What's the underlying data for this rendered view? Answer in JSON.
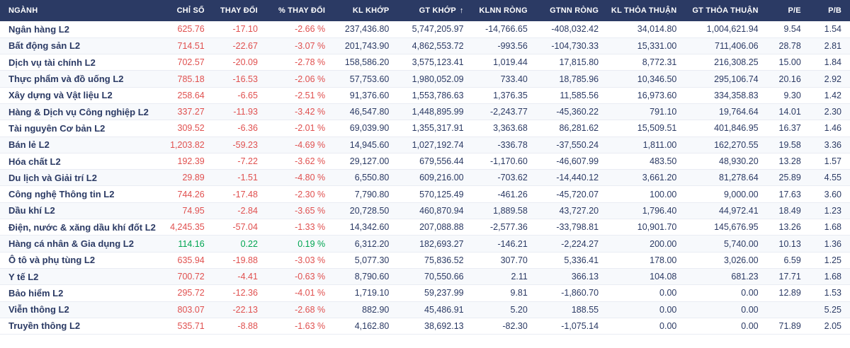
{
  "colors": {
    "header_bg": "#2b3a64",
    "text_navy": "#2b3a64",
    "negative": "#e0504f",
    "positive": "#00a551",
    "row_alt_bg": "#f7f9fc",
    "row_border": "#e9ecf3"
  },
  "icons": {
    "sort": "↑"
  },
  "table": {
    "sorted_by": "GT KHỚP",
    "columns": [
      {
        "key": "sector",
        "label": "NGÀNH"
      },
      {
        "key": "index",
        "label": "CHỈ SỐ"
      },
      {
        "key": "change",
        "label": "THAY ĐỔI"
      },
      {
        "key": "pct_change",
        "label": "% THAY ĐỔI"
      },
      {
        "key": "matched_volume",
        "label": "KL KHỚP"
      },
      {
        "key": "matched_value",
        "label": "GT KHỚP",
        "sort": true
      },
      {
        "key": "foreign_net_volume",
        "label": "KLNN RÒNG"
      },
      {
        "key": "foreign_net_value",
        "label": "GTNN RÒNG"
      },
      {
        "key": "deal_volume",
        "label": "KL THỎA THUẬN"
      },
      {
        "key": "deal_value",
        "label": "GT THỎA THUẬN"
      },
      {
        "key": "pe",
        "label": "P/E"
      },
      {
        "key": "pb",
        "label": "P/B"
      }
    ],
    "rows": [
      {
        "sector": "Ngân hàng L2",
        "index": "625.76",
        "change": "-17.10",
        "pct_change": "-2.66 %",
        "matched_volume": "237,436.80",
        "matched_value": "5,747,205.97",
        "foreign_net_volume": "-14,766.65",
        "foreign_net_value": "-408,032.42",
        "deal_volume": "34,014.80",
        "deal_value": "1,004,621.94",
        "pe": "9.54",
        "pb": "1.54",
        "trend": "down"
      },
      {
        "sector": "Bất động sản L2",
        "index": "714.51",
        "change": "-22.67",
        "pct_change": "-3.07 %",
        "matched_volume": "201,743.90",
        "matched_value": "4,862,553.72",
        "foreign_net_volume": "-993.56",
        "foreign_net_value": "-104,730.33",
        "deal_volume": "15,331.00",
        "deal_value": "711,406.06",
        "pe": "28.78",
        "pb": "2.81",
        "trend": "down"
      },
      {
        "sector": "Dịch vụ tài chính L2",
        "index": "702.57",
        "change": "-20.09",
        "pct_change": "-2.78 %",
        "matched_volume": "158,586.20",
        "matched_value": "3,575,123.41",
        "foreign_net_volume": "1,019.44",
        "foreign_net_value": "17,815.80",
        "deal_volume": "8,772.31",
        "deal_value": "216,308.25",
        "pe": "15.00",
        "pb": "1.84",
        "trend": "down"
      },
      {
        "sector": "Thực phẩm và đồ uống L2",
        "index": "785.18",
        "change": "-16.53",
        "pct_change": "-2.06 %",
        "matched_volume": "57,753.60",
        "matched_value": "1,980,052.09",
        "foreign_net_volume": "733.40",
        "foreign_net_value": "18,785.96",
        "deal_volume": "10,346.50",
        "deal_value": "295,106.74",
        "pe": "20.16",
        "pb": "2.92",
        "trend": "down"
      },
      {
        "sector": "Xây dựng và Vật liệu L2",
        "index": "258.64",
        "change": "-6.65",
        "pct_change": "-2.51 %",
        "matched_volume": "91,376.60",
        "matched_value": "1,553,786.63",
        "foreign_net_volume": "1,376.35",
        "foreign_net_value": "11,585.56",
        "deal_volume": "16,973.60",
        "deal_value": "334,358.83",
        "pe": "9.30",
        "pb": "1.42",
        "trend": "down"
      },
      {
        "sector": "Hàng & Dịch vụ Công nghiệp L2",
        "index": "337.27",
        "change": "-11.93",
        "pct_change": "-3.42 %",
        "matched_volume": "46,547.80",
        "matched_value": "1,448,895.99",
        "foreign_net_volume": "-2,243.77",
        "foreign_net_value": "-45,360.22",
        "deal_volume": "791.10",
        "deal_value": "19,764.64",
        "pe": "14.01",
        "pb": "2.30",
        "trend": "down"
      },
      {
        "sector": "Tài nguyên Cơ bản L2",
        "index": "309.52",
        "change": "-6.36",
        "pct_change": "-2.01 %",
        "matched_volume": "69,039.90",
        "matched_value": "1,355,317.91",
        "foreign_net_volume": "3,363.68",
        "foreign_net_value": "86,281.62",
        "deal_volume": "15,509.51",
        "deal_value": "401,846.95",
        "pe": "16.37",
        "pb": "1.46",
        "trend": "down"
      },
      {
        "sector": "Bán lẻ L2",
        "index": "1,203.82",
        "change": "-59.23",
        "pct_change": "-4.69 %",
        "matched_volume": "14,945.60",
        "matched_value": "1,027,192.74",
        "foreign_net_volume": "-336.78",
        "foreign_net_value": "-37,550.24",
        "deal_volume": "1,811.00",
        "deal_value": "162,270.55",
        "pe": "19.58",
        "pb": "3.36",
        "trend": "down"
      },
      {
        "sector": "Hóa chất L2",
        "index": "192.39",
        "change": "-7.22",
        "pct_change": "-3.62 %",
        "matched_volume": "29,127.00",
        "matched_value": "679,556.44",
        "foreign_net_volume": "-1,170.60",
        "foreign_net_value": "-46,607.99",
        "deal_volume": "483.50",
        "deal_value": "48,930.20",
        "pe": "13.28",
        "pb": "1.57",
        "trend": "down"
      },
      {
        "sector": "Du lịch và Giải trí L2",
        "index": "29.89",
        "change": "-1.51",
        "pct_change": "-4.80 %",
        "matched_volume": "6,550.80",
        "matched_value": "609,216.00",
        "foreign_net_volume": "-703.62",
        "foreign_net_value": "-14,440.12",
        "deal_volume": "3,661.20",
        "deal_value": "81,278.64",
        "pe": "25.89",
        "pb": "4.55",
        "trend": "down"
      },
      {
        "sector": "Công nghệ Thông tin L2",
        "index": "744.26",
        "change": "-17.48",
        "pct_change": "-2.30 %",
        "matched_volume": "7,790.80",
        "matched_value": "570,125.49",
        "foreign_net_volume": "-461.26",
        "foreign_net_value": "-45,720.07",
        "deal_volume": "100.00",
        "deal_value": "9,000.00",
        "pe": "17.63",
        "pb": "3.60",
        "trend": "down"
      },
      {
        "sector": "Dầu khí L2",
        "index": "74.95",
        "change": "-2.84",
        "pct_change": "-3.65 %",
        "matched_volume": "20,728.50",
        "matched_value": "460,870.94",
        "foreign_net_volume": "1,889.58",
        "foreign_net_value": "43,727.20",
        "deal_volume": "1,796.40",
        "deal_value": "44,972.41",
        "pe": "18.49",
        "pb": "1.23",
        "trend": "down"
      },
      {
        "sector": "Điện, nước & xăng dầu khí đốt L2",
        "index": "4,245.35",
        "change": "-57.04",
        "pct_change": "-1.33 %",
        "matched_volume": "14,342.60",
        "matched_value": "207,088.88",
        "foreign_net_volume": "-2,577.36",
        "foreign_net_value": "-33,798.81",
        "deal_volume": "10,901.70",
        "deal_value": "145,676.95",
        "pe": "13.26",
        "pb": "1.68",
        "trend": "down"
      },
      {
        "sector": "Hàng cá nhân & Gia dụng L2",
        "index": "114.16",
        "change": "0.22",
        "pct_change": "0.19 %",
        "matched_volume": "6,312.20",
        "matched_value": "182,693.27",
        "foreign_net_volume": "-146.21",
        "foreign_net_value": "-2,224.27",
        "deal_volume": "200.00",
        "deal_value": "5,740.00",
        "pe": "10.13",
        "pb": "1.36",
        "trend": "up"
      },
      {
        "sector": "Ô tô và phụ tùng L2",
        "index": "635.94",
        "change": "-19.88",
        "pct_change": "-3.03 %",
        "matched_volume": "5,077.30",
        "matched_value": "75,836.52",
        "foreign_net_volume": "307.70",
        "foreign_net_value": "5,336.41",
        "deal_volume": "178.00",
        "deal_value": "3,026.00",
        "pe": "6.59",
        "pb": "1.25",
        "trend": "down"
      },
      {
        "sector": "Y tế L2",
        "index": "700.72",
        "change": "-4.41",
        "pct_change": "-0.63 %",
        "matched_volume": "8,790.60",
        "matched_value": "70,550.66",
        "foreign_net_volume": "2.11",
        "foreign_net_value": "366.13",
        "deal_volume": "104.08",
        "deal_value": "681.23",
        "pe": "17.71",
        "pb": "1.68",
        "trend": "down"
      },
      {
        "sector": "Bảo hiểm L2",
        "index": "295.72",
        "change": "-12.36",
        "pct_change": "-4.01 %",
        "matched_volume": "1,719.10",
        "matched_value": "59,237.99",
        "foreign_net_volume": "9.81",
        "foreign_net_value": "-1,860.70",
        "deal_volume": "0.00",
        "deal_value": "0.00",
        "pe": "12.89",
        "pb": "1.53",
        "trend": "down"
      },
      {
        "sector": "Viễn thông L2",
        "index": "803.07",
        "change": "-22.13",
        "pct_change": "-2.68 %",
        "matched_volume": "882.90",
        "matched_value": "45,486.91",
        "foreign_net_volume": "5.20",
        "foreign_net_value": "188.55",
        "deal_volume": "0.00",
        "deal_value": "0.00",
        "pe": "",
        "pb": "5.25",
        "trend": "down"
      },
      {
        "sector": "Truyền thông L2",
        "index": "535.71",
        "change": "-8.88",
        "pct_change": "-1.63 %",
        "matched_volume": "4,162.80",
        "matched_value": "38,692.13",
        "foreign_net_volume": "-82.30",
        "foreign_net_value": "-1,075.14",
        "deal_volume": "0.00",
        "deal_value": "0.00",
        "pe": "71.89",
        "pb": "2.05",
        "trend": "down"
      }
    ]
  }
}
